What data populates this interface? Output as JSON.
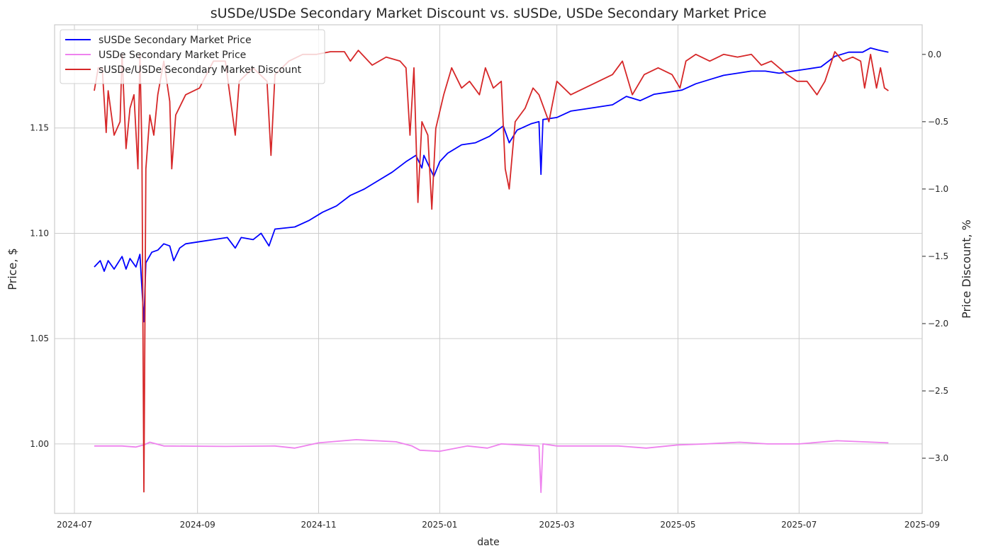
{
  "chart_data": {
    "type": "line",
    "title": "sUSDe/USDe Secondary Market Discount vs. sUSDe, USDe Secondary Market Price",
    "xlabel": "date",
    "ylabel_left": "Price, $",
    "ylabel_right": "Price Discount, %",
    "xlim": [
      "2024-06-21",
      "2025-09-01"
    ],
    "ylim_left": [
      0.967,
      1.199
    ],
    "ylim_right": [
      -3.41,
      0.22
    ],
    "grid": true,
    "legend_position": "top-left",
    "x_ticks": [
      "2024-07",
      "2024-09",
      "2024-11",
      "2025-01",
      "2025-03",
      "2025-05",
      "2025-07",
      "2025-09"
    ],
    "y_ticks_left": [
      "1.00",
      "1.05",
      "1.10",
      "1.15"
    ],
    "y_ticks_right": [
      "0.0",
      "−0.5",
      "−1.0",
      "−1.5",
      "−2.0",
      "−2.5",
      "−3.0"
    ],
    "series": [
      {
        "name": "sUSDe Secondary Market Price",
        "axis": "left",
        "color": "#0000ff",
        "points": [
          [
            "2024-07-11",
            1.084
          ],
          [
            "2024-07-14",
            1.087
          ],
          [
            "2024-07-16",
            1.082
          ],
          [
            "2024-07-18",
            1.087
          ],
          [
            "2024-07-21",
            1.083
          ],
          [
            "2024-07-25",
            1.089
          ],
          [
            "2024-07-27",
            1.083
          ],
          [
            "2024-07-29",
            1.088
          ],
          [
            "2024-08-01",
            1.084
          ],
          [
            "2024-08-03",
            1.09
          ],
          [
            "2024-08-05",
            1.058
          ],
          [
            "2024-08-06",
            1.086
          ],
          [
            "2024-08-09",
            1.091
          ],
          [
            "2024-08-12",
            1.092
          ],
          [
            "2024-08-15",
            1.095
          ],
          [
            "2024-08-18",
            1.094
          ],
          [
            "2024-08-20",
            1.087
          ],
          [
            "2024-08-23",
            1.093
          ],
          [
            "2024-08-26",
            1.095
          ],
          [
            "2024-09-02",
            1.096
          ],
          [
            "2024-09-09",
            1.097
          ],
          [
            "2024-09-16",
            1.098
          ],
          [
            "2024-09-20",
            1.093
          ],
          [
            "2024-09-23",
            1.098
          ],
          [
            "2024-09-29",
            1.097
          ],
          [
            "2024-10-03",
            1.1
          ],
          [
            "2024-10-07",
            1.094
          ],
          [
            "2024-10-10",
            1.102
          ],
          [
            "2024-10-20",
            1.103
          ],
          [
            "2024-10-27",
            1.106
          ],
          [
            "2024-11-03",
            1.11
          ],
          [
            "2024-11-10",
            1.113
          ],
          [
            "2024-11-17",
            1.118
          ],
          [
            "2024-11-24",
            1.121
          ],
          [
            "2024-12-01",
            1.125
          ],
          [
            "2024-12-08",
            1.129
          ],
          [
            "2024-12-15",
            1.134
          ],
          [
            "2024-12-20",
            1.137
          ],
          [
            "2024-12-23",
            1.131
          ],
          [
            "2024-12-24",
            1.137
          ],
          [
            "2024-12-26",
            1.133
          ],
          [
            "2024-12-29",
            1.127
          ],
          [
            "2025-01-01",
            1.134
          ],
          [
            "2025-01-05",
            1.138
          ],
          [
            "2025-01-12",
            1.142
          ],
          [
            "2025-01-19",
            1.143
          ],
          [
            "2025-01-26",
            1.146
          ],
          [
            "2025-02-02",
            1.151
          ],
          [
            "2025-02-05",
            1.143
          ],
          [
            "2025-02-09",
            1.149
          ],
          [
            "2025-02-16",
            1.152
          ],
          [
            "2025-02-20",
            1.153
          ],
          [
            "2025-02-21",
            1.128
          ],
          [
            "2025-02-22",
            1.154
          ],
          [
            "2025-03-01",
            1.155
          ],
          [
            "2025-03-08",
            1.158
          ],
          [
            "2025-03-15",
            1.159
          ],
          [
            "2025-03-22",
            1.16
          ],
          [
            "2025-03-29",
            1.161
          ],
          [
            "2025-04-05",
            1.165
          ],
          [
            "2025-04-12",
            1.163
          ],
          [
            "2025-04-19",
            1.166
          ],
          [
            "2025-04-26",
            1.167
          ],
          [
            "2025-05-03",
            1.168
          ],
          [
            "2025-05-10",
            1.171
          ],
          [
            "2025-05-17",
            1.173
          ],
          [
            "2025-05-24",
            1.175
          ],
          [
            "2025-05-31",
            1.176
          ],
          [
            "2025-06-07",
            1.177
          ],
          [
            "2025-06-14",
            1.177
          ],
          [
            "2025-06-21",
            1.176
          ],
          [
            "2025-06-28",
            1.177
          ],
          [
            "2025-07-05",
            1.178
          ],
          [
            "2025-07-12",
            1.179
          ],
          [
            "2025-07-19",
            1.184
          ],
          [
            "2025-07-26",
            1.186
          ],
          [
            "2025-08-02",
            1.186
          ],
          [
            "2025-08-06",
            1.188
          ],
          [
            "2025-08-10",
            1.187
          ],
          [
            "2025-08-15",
            1.186
          ]
        ]
      },
      {
        "name": "USDe Secondary Market Price",
        "axis": "left",
        "color": "#ee82ee",
        "points": [
          [
            "2024-07-11",
            0.999
          ],
          [
            "2024-07-25",
            0.999
          ],
          [
            "2024-08-01",
            0.9985
          ],
          [
            "2024-08-05",
            0.9995
          ],
          [
            "2024-08-08",
            1.0008
          ],
          [
            "2024-08-15",
            0.999
          ],
          [
            "2024-09-15",
            0.9988
          ],
          [
            "2024-10-10",
            0.999
          ],
          [
            "2024-10-20",
            0.998
          ],
          [
            "2024-11-01",
            1.0005
          ],
          [
            "2024-11-20",
            1.002
          ],
          [
            "2024-12-10",
            1.001
          ],
          [
            "2024-12-18",
            0.999
          ],
          [
            "2024-12-22",
            0.997
          ],
          [
            "2025-01-01",
            0.9965
          ],
          [
            "2025-01-15",
            0.999
          ],
          [
            "2025-01-25",
            0.998
          ],
          [
            "2025-02-01",
            1.0
          ],
          [
            "2025-02-10",
            0.9995
          ],
          [
            "2025-02-20",
            0.999
          ],
          [
            "2025-02-21",
            0.977
          ],
          [
            "2025-02-22",
            1.0
          ],
          [
            "2025-03-01",
            0.999
          ],
          [
            "2025-04-01",
            0.999
          ],
          [
            "2025-04-15",
            0.998
          ],
          [
            "2025-05-01",
            0.9995
          ],
          [
            "2025-05-15",
            1.0
          ],
          [
            "2025-06-01",
            1.0008
          ],
          [
            "2025-06-15",
            1.0
          ],
          [
            "2025-07-01",
            1.0
          ],
          [
            "2025-07-20",
            1.0015
          ],
          [
            "2025-08-15",
            1.0005
          ]
        ]
      },
      {
        "name": "sUSDe/USDe Secondary Market Discount",
        "axis": "right",
        "color": "#d62728",
        "points": [
          [
            "2024-07-11",
            -0.27
          ],
          [
            "2024-07-13",
            -0.1
          ],
          [
            "2024-07-15",
            -0.1
          ],
          [
            "2024-07-17",
            -0.58
          ],
          [
            "2024-07-18",
            -0.27
          ],
          [
            "2024-07-21",
            -0.6
          ],
          [
            "2024-07-24",
            -0.5
          ],
          [
            "2024-07-25",
            0.0
          ],
          [
            "2024-07-27",
            -0.7
          ],
          [
            "2024-07-29",
            -0.4
          ],
          [
            "2024-07-31",
            -0.3
          ],
          [
            "2024-08-02",
            -0.85
          ],
          [
            "2024-08-03",
            0.0
          ],
          [
            "2024-08-04",
            -0.7
          ],
          [
            "2024-08-05",
            -3.25
          ],
          [
            "2024-08-06",
            -0.85
          ],
          [
            "2024-08-08",
            -0.45
          ],
          [
            "2024-08-10",
            -0.6
          ],
          [
            "2024-08-12",
            -0.3
          ],
          [
            "2024-08-15",
            -0.05
          ],
          [
            "2024-08-18",
            -0.35
          ],
          [
            "2024-08-19",
            -0.85
          ],
          [
            "2024-08-21",
            -0.45
          ],
          [
            "2024-08-26",
            -0.3
          ],
          [
            "2024-09-02",
            -0.25
          ],
          [
            "2024-09-09",
            -0.05
          ],
          [
            "2024-09-15",
            -0.05
          ],
          [
            "2024-09-20",
            -0.6
          ],
          [
            "2024-09-22",
            -0.2
          ],
          [
            "2024-09-29",
            -0.1
          ],
          [
            "2024-10-06",
            -0.2
          ],
          [
            "2024-10-08",
            -0.75
          ],
          [
            "2024-10-10",
            -0.15
          ],
          [
            "2024-10-17",
            -0.05
          ],
          [
            "2024-10-24",
            0.0
          ],
          [
            "2024-10-31",
            0.0
          ],
          [
            "2024-11-07",
            0.02
          ],
          [
            "2024-11-14",
            0.02
          ],
          [
            "2024-11-17",
            -0.05
          ],
          [
            "2024-11-21",
            0.03
          ],
          [
            "2024-11-28",
            -0.08
          ],
          [
            "2024-12-05",
            -0.02
          ],
          [
            "2024-12-12",
            -0.05
          ],
          [
            "2024-12-15",
            -0.1
          ],
          [
            "2024-12-17",
            -0.6
          ],
          [
            "2024-12-19",
            -0.1
          ],
          [
            "2024-12-21",
            -1.1
          ],
          [
            "2024-12-23",
            -0.5
          ],
          [
            "2024-12-26",
            -0.6
          ],
          [
            "2024-12-28",
            -1.15
          ],
          [
            "2024-12-30",
            -0.55
          ],
          [
            "2025-01-03",
            -0.3
          ],
          [
            "2025-01-07",
            -0.1
          ],
          [
            "2025-01-12",
            -0.25
          ],
          [
            "2025-01-16",
            -0.2
          ],
          [
            "2025-01-21",
            -0.3
          ],
          [
            "2025-01-24",
            -0.1
          ],
          [
            "2025-01-28",
            -0.25
          ],
          [
            "2025-02-01",
            -0.2
          ],
          [
            "2025-02-03",
            -0.85
          ],
          [
            "2025-02-05",
            -1.0
          ],
          [
            "2025-02-08",
            -0.5
          ],
          [
            "2025-02-13",
            -0.4
          ],
          [
            "2025-02-17",
            -0.25
          ],
          [
            "2025-02-20",
            -0.3
          ],
          [
            "2025-02-25",
            -0.5
          ],
          [
            "2025-03-01",
            -0.2
          ],
          [
            "2025-03-08",
            -0.3
          ],
          [
            "2025-03-15",
            -0.25
          ],
          [
            "2025-03-22",
            -0.2
          ],
          [
            "2025-03-29",
            -0.15
          ],
          [
            "2025-04-03",
            -0.05
          ],
          [
            "2025-04-08",
            -0.3
          ],
          [
            "2025-04-14",
            -0.15
          ],
          [
            "2025-04-21",
            -0.1
          ],
          [
            "2025-04-28",
            -0.15
          ],
          [
            "2025-05-02",
            -0.25
          ],
          [
            "2025-05-05",
            -0.05
          ],
          [
            "2025-05-10",
            0.0
          ],
          [
            "2025-05-17",
            -0.05
          ],
          [
            "2025-05-24",
            0.0
          ],
          [
            "2025-05-31",
            -0.02
          ],
          [
            "2025-06-07",
            0.0
          ],
          [
            "2025-06-12",
            -0.08
          ],
          [
            "2025-06-17",
            -0.05
          ],
          [
            "2025-06-21",
            -0.1
          ],
          [
            "2025-06-25",
            -0.15
          ],
          [
            "2025-06-30",
            -0.2
          ],
          [
            "2025-07-05",
            -0.2
          ],
          [
            "2025-07-10",
            -0.3
          ],
          [
            "2025-07-14",
            -0.2
          ],
          [
            "2025-07-19",
            0.02
          ],
          [
            "2025-07-23",
            -0.05
          ],
          [
            "2025-07-28",
            -0.02
          ],
          [
            "2025-08-01",
            -0.05
          ],
          [
            "2025-08-03",
            -0.25
          ],
          [
            "2025-08-06",
            0.0
          ],
          [
            "2025-08-09",
            -0.25
          ],
          [
            "2025-08-11",
            -0.1
          ],
          [
            "2025-08-13",
            -0.25
          ],
          [
            "2025-08-15",
            -0.27
          ]
        ]
      }
    ]
  }
}
